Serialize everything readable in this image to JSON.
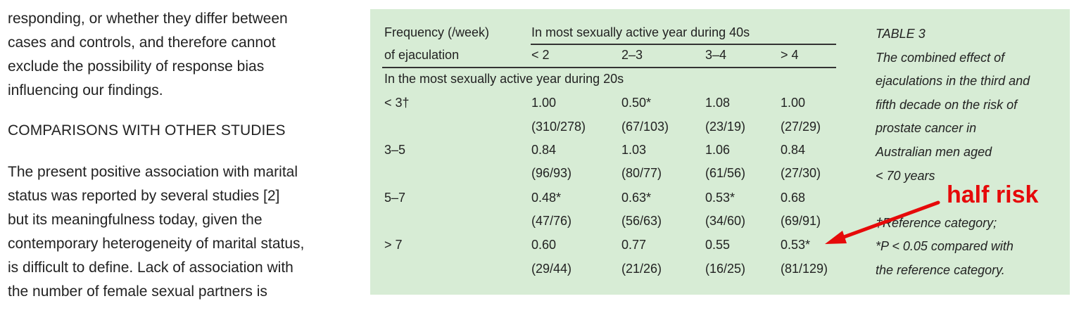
{
  "left_text": {
    "para1_lines": [
      "responding, or whether they differ between",
      "cases and controls, and therefore cannot",
      "exclude the possibility of response bias",
      "influencing our findings."
    ],
    "heading": "COMPARISONS WITH OTHER STUDIES",
    "para2_lines": [
      "The present positive association with marital",
      "status was reported by several studies [2]",
      "but its meaningfulness today, given the",
      "contemporary heterogeneity of marital status,",
      "is difficult to define. Lack of association with",
      "the number of female sexual partners is"
    ]
  },
  "table": {
    "header": {
      "row_label_line1": "Frequency (/week)",
      "row_label_line2": "of ejaculation",
      "col_group": "In most sexually active year during 40s",
      "columns": [
        "< 2",
        "2–3",
        "3–4",
        "> 4"
      ],
      "subheader": "In the most sexually active year during 20s"
    },
    "rows": [
      {
        "label": "< 3†",
        "values": [
          "1.00",
          "0.50*",
          "1.08",
          "1.00"
        ],
        "counts": [
          "(310/278)",
          "(67/103)",
          "(23/19)",
          "(27/29)"
        ]
      },
      {
        "label": "3–5",
        "values": [
          "0.84",
          "1.03",
          "1.06",
          "0.84"
        ],
        "counts": [
          "(96/93)",
          "(80/77)",
          "(61/56)",
          "(27/30)"
        ]
      },
      {
        "label": "5–7",
        "values": [
          "0.48*",
          "0.63*",
          "0.53*",
          "0.68"
        ],
        "counts": [
          "(47/76)",
          "(56/63)",
          "(34/60)",
          "(69/91)"
        ]
      },
      {
        "label": "> 7",
        "values": [
          "0.60",
          "0.77",
          "0.55",
          "0.53*"
        ],
        "counts": [
          "(29/44)",
          "(21/26)",
          "(16/25)",
          "(81/129)"
        ]
      }
    ],
    "caption_lines": [
      "TABLE 3",
      "The combined effect of",
      "ejaculations in the third and",
      "fifth decade on the risk of",
      "prostate cancer in",
      "Australian men aged",
      "< 70 years",
      "",
      "†Reference category;",
      "*P < 0.05 compared with",
      "the reference category."
    ]
  },
  "annotation": {
    "text": "half risk",
    "color": "#e60a0a"
  },
  "colors": {
    "table_background": "#d7ecd5",
    "text": "#222222"
  }
}
